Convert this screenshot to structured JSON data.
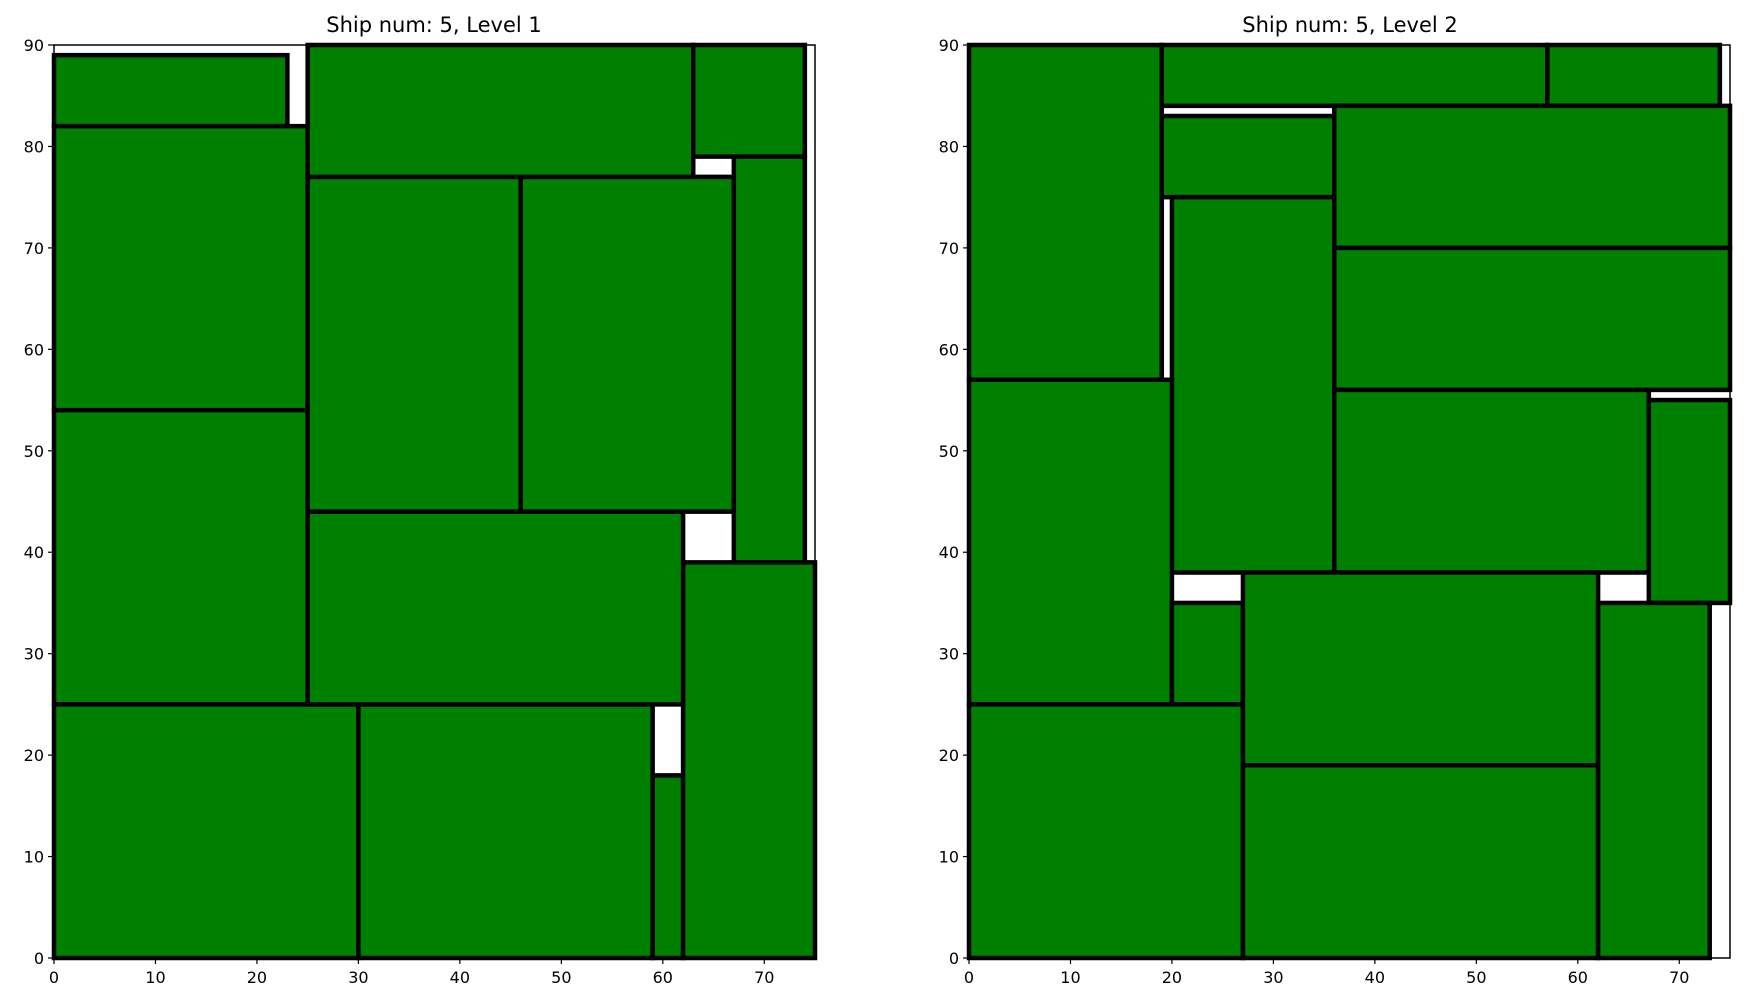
{
  "chart_data": [
    {
      "type": "rectangles",
      "title": "Ship num: 5, Level 1",
      "xlim": [
        0,
        75
      ],
      "ylim": [
        0,
        90
      ],
      "xticks": [
        "0",
        "10",
        "20",
        "30",
        "40",
        "50",
        "60",
        "70"
      ],
      "yticks": [
        "0",
        "10",
        "20",
        "30",
        "40",
        "50",
        "60",
        "70",
        "80",
        "90"
      ],
      "fill_color": "#008000",
      "edge_color": "#000000",
      "rects": [
        {
          "x": 0,
          "y": 82,
          "w": 23,
          "h": 7
        },
        {
          "x": 0,
          "y": 54,
          "w": 25,
          "h": 28
        },
        {
          "x": 0,
          "y": 25,
          "w": 25,
          "h": 29
        },
        {
          "x": 0,
          "y": 0,
          "w": 30,
          "h": 25
        },
        {
          "x": 30,
          "y": 0,
          "w": 29,
          "h": 25
        },
        {
          "x": 59,
          "y": 0,
          "w": 3,
          "h": 18
        },
        {
          "x": 62,
          "y": 0,
          "w": 13,
          "h": 39
        },
        {
          "x": 25,
          "y": 25,
          "w": 37,
          "h": 19
        },
        {
          "x": 25,
          "y": 44,
          "w": 21,
          "h": 33
        },
        {
          "x": 46,
          "y": 44,
          "w": 21,
          "h": 33
        },
        {
          "x": 25,
          "y": 77,
          "w": 38,
          "h": 13
        },
        {
          "x": 63,
          "y": 79,
          "w": 11,
          "h": 11
        },
        {
          "x": 67,
          "y": 39,
          "w": 7,
          "h": 40
        }
      ]
    },
    {
      "type": "rectangles",
      "title": "Ship num: 5, Level 2",
      "xlim": [
        0,
        75
      ],
      "ylim": [
        0,
        90
      ],
      "xticks": [
        "0",
        "10",
        "20",
        "30",
        "40",
        "50",
        "60",
        "70"
      ],
      "yticks": [
        "0",
        "10",
        "20",
        "30",
        "40",
        "50",
        "60",
        "70",
        "80",
        "90"
      ],
      "fill_color": "#008000",
      "edge_color": "#000000",
      "rects": [
        {
          "x": 0,
          "y": 57,
          "w": 19,
          "h": 33
        },
        {
          "x": 19,
          "y": 84,
          "w": 38,
          "h": 6
        },
        {
          "x": 57,
          "y": 84,
          "w": 17,
          "h": 6
        },
        {
          "x": 19,
          "y": 75,
          "w": 17,
          "h": 8
        },
        {
          "x": 36,
          "y": 70,
          "w": 39,
          "h": 14
        },
        {
          "x": 36,
          "y": 56,
          "w": 39,
          "h": 14
        },
        {
          "x": 20,
          "y": 38,
          "w": 16,
          "h": 37
        },
        {
          "x": 36,
          "y": 38,
          "w": 31,
          "h": 18
        },
        {
          "x": 67,
          "y": 35,
          "w": 8,
          "h": 20
        },
        {
          "x": 0,
          "y": 25,
          "w": 20,
          "h": 32
        },
        {
          "x": 20,
          "y": 25,
          "w": 7,
          "h": 10
        },
        {
          "x": 0,
          "y": 0,
          "w": 27,
          "h": 25
        },
        {
          "x": 27,
          "y": 19,
          "w": 35,
          "h": 19
        },
        {
          "x": 27,
          "y": 0,
          "w": 35,
          "h": 19
        },
        {
          "x": 62,
          "y": 0,
          "w": 11,
          "h": 35
        }
      ]
    }
  ]
}
